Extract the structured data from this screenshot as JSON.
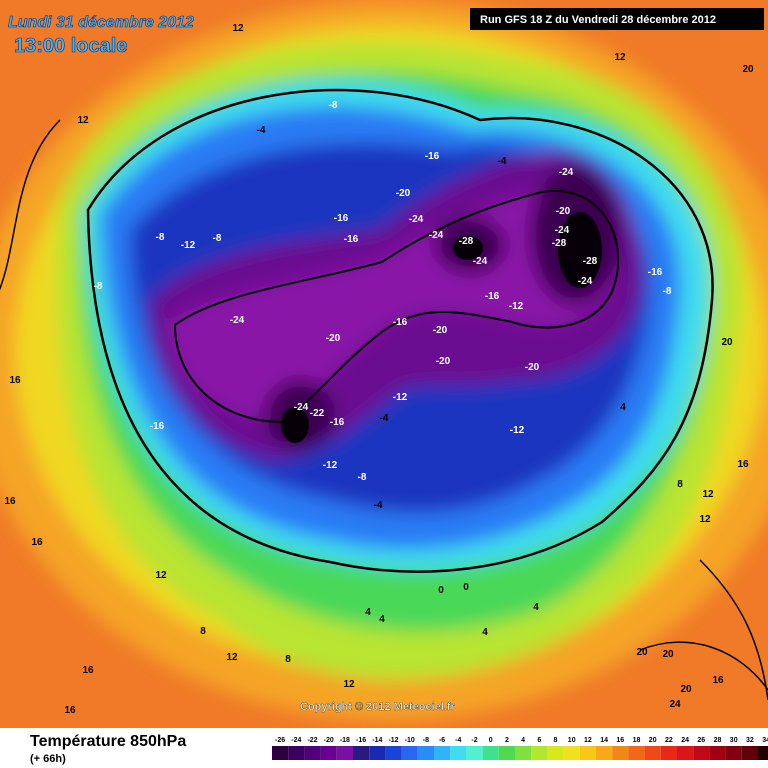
{
  "header": {
    "date": "Lundi 31 décembre 2012",
    "time": "13:00 locale",
    "run": "Run GFS 18 Z du Vendredi 28 décembre 2012"
  },
  "copyright": "Copyright © 2012 Meteociel.fr",
  "footer": {
    "title": "Température 850hPa",
    "subtitle": "(+ 66h)"
  },
  "legend": {
    "ticks": [
      -26,
      -24,
      -22,
      -20,
      -18,
      -16,
      -14,
      -12,
      -10,
      -8,
      -6,
      -4,
      -2,
      0,
      2,
      4,
      6,
      8,
      10,
      12,
      14,
      16,
      18,
      20,
      22,
      24,
      26,
      28,
      30,
      32,
      34
    ],
    "colors": [
      "#2a0040",
      "#3c0060",
      "#520078",
      "#680090",
      "#7a10a0",
      "#2a1a80",
      "#1a2ab0",
      "#1a44d8",
      "#2a66f0",
      "#2a8cf8",
      "#30b4f8",
      "#40dcf0",
      "#50f0d0",
      "#40e090",
      "#50d850",
      "#80e040",
      "#b0e830",
      "#d8e820",
      "#f0e020",
      "#f8c818",
      "#f8a818",
      "#f08818",
      "#f06818",
      "#f04818",
      "#e82818",
      "#d81818",
      "#c00818",
      "#a00010",
      "#800010",
      "#600008",
      "#200000"
    ]
  },
  "contour_labels": [
    -24,
    -20,
    -16,
    -20,
    -20,
    -12,
    -16,
    -28,
    -24,
    -24,
    -24,
    -20,
    -16,
    -24,
    -20,
    -24,
    -28,
    -28,
    -24,
    -16,
    -8,
    -12,
    -8,
    -8,
    -8,
    -16,
    -24,
    -22,
    -16,
    -12,
    -4,
    -12,
    -8,
    -4,
    -12,
    -20,
    -8,
    -4,
    -16,
    -16,
    -4,
    4,
    8,
    12,
    12,
    16,
    16,
    12,
    16,
    12,
    12,
    12,
    20,
    20,
    16,
    20,
    20,
    20,
    24,
    16,
    8,
    12,
    16,
    16,
    0,
    4,
    4,
    8,
    12,
    4,
    4,
    0
  ]
}
